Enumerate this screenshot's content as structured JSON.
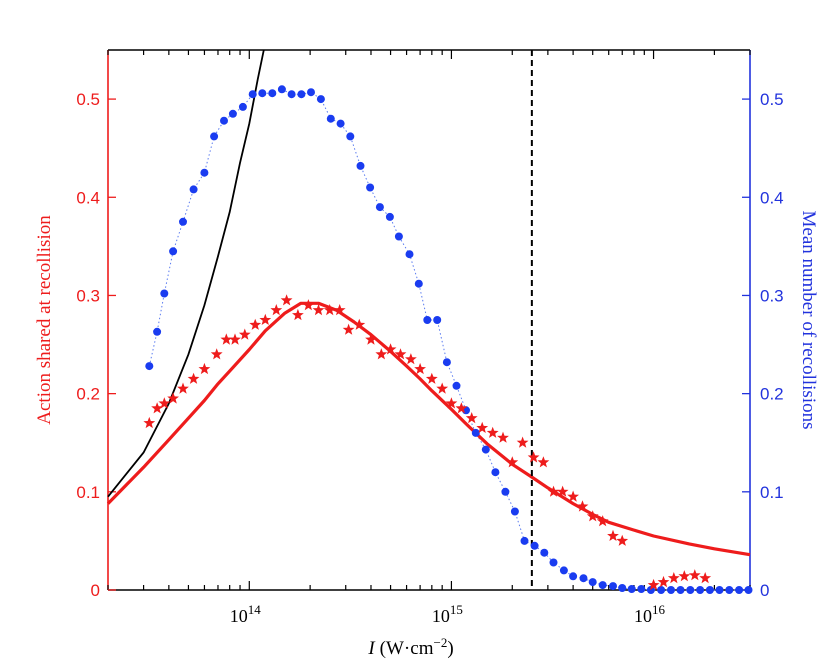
{
  "chart_data": {
    "type": "scatter",
    "xlabel_italic": "I",
    "xlabel_units": "(W·cm",
    "xlabel_exp": "−2",
    "xlabel_close": ")",
    "ylabel_left": "Action shared at recollision",
    "ylabel_right": "Mean number of recollisions",
    "x_scale": "log",
    "xlim": [
      20000000000000.0,
      3e+16
    ],
    "ylim_left": [
      0,
      0.55
    ],
    "ylim_right": [
      0,
      0.55
    ],
    "x_tick_bases": [
      "10",
      "10",
      "10"
    ],
    "x_tick_exps": [
      "14",
      "15",
      "16"
    ],
    "y_ticks_left": [
      "0",
      "0.1",
      "0.2",
      "0.3",
      "0.4",
      "0.5"
    ],
    "y_ticks_right": [
      "0",
      "0.1",
      "0.2",
      "0.3",
      "0.4",
      "0.5"
    ],
    "vline_x": 2500000000000000.0,
    "colors": {
      "red": "#ee1c1c",
      "blue": "#1a3cf0",
      "black": "#000000"
    },
    "series": [
      {
        "name": "action-stars",
        "axis": "left",
        "marker": "star",
        "x": [
          32000000000000.0,
          35000000000000.0,
          38000000000000.0,
          42000000000000.0,
          47000000000000.0,
          53000000000000.0,
          60000000000000.0,
          69000000000000.0,
          77000000000000.0,
          85000000000000.0,
          95000000000000.0,
          107000000000000.0,
          120000000000000.0,
          136000000000000.0,
          153000000000000.0,
          174000000000000.0,
          196000000000000.0,
          220000000000000.0,
          250000000000000.0,
          280000000000000.0,
          310000000000000.0,
          350000000000000.0,
          400000000000000.0,
          450000000000000.0,
          500000000000000.0,
          560000000000000.0,
          630000000000000.0,
          700000000000000.0,
          800000000000000.0,
          900000000000000.0,
          1000000000000000.0,
          1120000000000000.0,
          1260000000000000.0,
          1420000000000000.0,
          1600000000000000.0,
          1800000000000000.0,
          2000000000000000.0,
          2250000000000000.0,
          2550000000000000.0,
          2850000000000000.0,
          3200000000000000.0,
          3550000000000000.0,
          4000000000000000.0,
          4450000000000000.0,
          5000000000000000.0,
          5600000000000000.0,
          6300000000000000.0,
          7000000000000000.0,
          1e+16,
          1.12e+16,
          1.26e+16,
          1.42e+16,
          1.6e+16,
          1.8e+16
        ],
        "y": [
          0.17,
          0.185,
          0.19,
          0.195,
          0.205,
          0.215,
          0.225,
          0.24,
          0.255,
          0.255,
          0.26,
          0.27,
          0.275,
          0.285,
          0.295,
          0.28,
          0.29,
          0.285,
          0.285,
          0.285,
          0.265,
          0.27,
          0.255,
          0.24,
          0.245,
          0.24,
          0.235,
          0.225,
          0.215,
          0.205,
          0.19,
          0.185,
          0.175,
          0.165,
          0.16,
          0.155,
          0.13,
          0.15,
          0.135,
          0.13,
          0.1,
          0.1,
          0.095,
          0.085,
          0.075,
          0.07,
          0.055,
          0.05,
          0.005,
          0.008,
          0.012,
          0.014,
          0.015,
          0.012
        ]
      },
      {
        "name": "recollision-dots",
        "axis": "right",
        "marker": "circle",
        "x": [
          32000000000000.0,
          35000000000000.0,
          38000000000000.0,
          42000000000000.0,
          47000000000000.0,
          53000000000000.0,
          60000000000000.0,
          67000000000000.0,
          75000000000000.0,
          83000000000000.0,
          93000000000000.0,
          104000000000000.0,
          116000000000000.0,
          130000000000000.0,
          145000000000000.0,
          162000000000000.0,
          181000000000000.0,
          202000000000000.0,
          226000000000000.0,
          253000000000000.0,
          283000000000000.0,
          316000000000000.0,
          355000000000000.0,
          396000000000000.0,
          443000000000000.0,
          496000000000000.0,
          550000000000000.0,
          620000000000000.0,
          690000000000000.0,
          760000000000000.0,
          850000000000000.0,
          950000000000000.0,
          1060000000000000.0,
          1180000000000000.0,
          1320000000000000.0,
          1480000000000000.0,
          1650000000000000.0,
          1850000000000000.0,
          2060000000000000.0,
          2300000000000000.0,
          2580000000000000.0,
          2880000000000000.0,
          3200000000000000.0,
          3600000000000000.0,
          4000000000000000.0,
          4500000000000000.0,
          5000000000000000.0,
          5600000000000000.0,
          6300000000000000.0,
          7000000000000000.0,
          7800000000000000.0,
          8700000000000000.0,
          9700000000000000.0,
          1.09e+16,
          1.22e+16,
          1.36e+16,
          1.52e+16,
          1.7e+16,
          1.9e+16,
          2.12e+16,
          2.37e+16,
          2.65e+16,
          2.95e+16
        ],
        "y": [
          0.228,
          0.263,
          0.302,
          0.345,
          0.375,
          0.408,
          0.425,
          0.462,
          0.478,
          0.485,
          0.492,
          0.505,
          0.506,
          0.506,
          0.51,
          0.505,
          0.505,
          0.507,
          0.5,
          0.48,
          0.475,
          0.462,
          0.432,
          0.41,
          0.39,
          0.38,
          0.36,
          0.342,
          0.312,
          0.275,
          0.275,
          0.232,
          0.208,
          0.183,
          0.16,
          0.143,
          0.12,
          0.1,
          0.08,
          0.05,
          0.045,
          0.038,
          0.028,
          0.02,
          0.014,
          0.012,
          0.008,
          0.005,
          0.004,
          0.002,
          0.001,
          0.001,
          0.0,
          0.0,
          0.0,
          0.0,
          0.0,
          0.0,
          0.0,
          0.0,
          0.0,
          0.0,
          0.0
        ]
      },
      {
        "name": "action-model-curve",
        "axis": "left",
        "marker": "line",
        "x": [
          20000000000000.0,
          30000000000000.0,
          40000000000000.0,
          50000000000000.0,
          60000000000000.0,
          70000000000000.0,
          80000000000000.0,
          100000000000000.0,
          120000000000000.0,
          150000000000000.0,
          180000000000000.0,
          220000000000000.0,
          270000000000000.0,
          330000000000000.0,
          400000000000000.0,
          500000000000000.0,
          600000000000000.0,
          700000000000000.0,
          800000000000000.0,
          1000000000000000.0,
          1200000000000000.0,
          1500000000000000.0,
          2000000000000000.0,
          2500000000000000.0,
          3000000000000000.0,
          4000000000000000.0,
          5000000000000000.0,
          6000000000000000.0,
          8000000000000000.0,
          1e+16,
          1.5e+16,
          2e+16,
          3e+16
        ],
        "y": [
          0.088,
          0.125,
          0.153,
          0.175,
          0.193,
          0.21,
          0.223,
          0.245,
          0.264,
          0.282,
          0.292,
          0.292,
          0.285,
          0.273,
          0.26,
          0.243,
          0.228,
          0.215,
          0.203,
          0.184,
          0.168,
          0.149,
          0.128,
          0.115,
          0.104,
          0.088,
          0.077,
          0.069,
          0.061,
          0.055,
          0.047,
          0.042,
          0.036
        ]
      },
      {
        "name": "black-asymptote-curve",
        "axis": "left",
        "marker": "line",
        "x": [
          20000000000000.0,
          30000000000000.0,
          40000000000000.0,
          50000000000000.0,
          60000000000000.0,
          70000000000000.0,
          80000000000000.0,
          90000000000000.0,
          100000000000000.0,
          110000000000000.0,
          118000000000000.0
        ],
        "y": [
          0.095,
          0.14,
          0.19,
          0.24,
          0.29,
          0.34,
          0.385,
          0.435,
          0.475,
          0.52,
          0.55
        ]
      }
    ]
  }
}
